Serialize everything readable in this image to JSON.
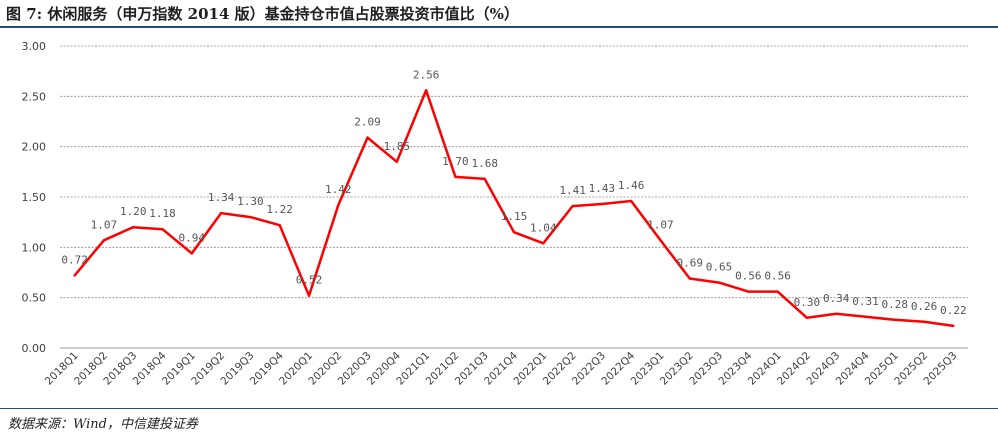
{
  "title": "图 7: 休闲服务（申万指数 2014 版）基金持仓市值占股票投资市值比（%）",
  "source": "数据来源：Wind，中信建投证券",
  "chart_data": {
    "type": "line",
    "title": "图 7: 休闲服务（申万指数 2014 版）基金持仓市值占股票投资市值比（%）",
    "xlabel": "",
    "ylabel": "",
    "ylim": [
      0,
      3
    ],
    "yticks": [
      "0.00",
      "0.50",
      "1.00",
      "1.50",
      "2.00",
      "2.50",
      "3.00"
    ],
    "grid": true,
    "line_color": "#ff0000",
    "categories": [
      "2018Q1",
      "2018Q2",
      "2018Q3",
      "2018Q4",
      "2019Q1",
      "2019Q2",
      "2019Q3",
      "2019Q4",
      "2020Q1",
      "2020Q2",
      "2020Q3",
      "2020Q4",
      "2021Q1",
      "2021Q2",
      "2021Q3",
      "2021Q4",
      "2022Q1",
      "2022Q2",
      "2022Q3",
      "2022Q4",
      "2023Q1",
      "2023Q2",
      "2023Q3",
      "2023Q4",
      "2024Q1",
      "2024Q2",
      "2024Q3",
      "2024Q4",
      "2025Q1",
      "2025Q2",
      "2025Q3"
    ],
    "values": [
      0.72,
      1.07,
      1.2,
      1.18,
      0.94,
      1.34,
      1.3,
      1.22,
      0.52,
      1.42,
      2.09,
      1.85,
      2.56,
      1.7,
      1.68,
      1.15,
      1.04,
      1.41,
      1.43,
      1.46,
      1.07,
      0.69,
      0.65,
      0.56,
      0.56,
      0.3,
      0.34,
      0.31,
      0.28,
      0.26,
      0.22
    ],
    "labels": [
      "0.72",
      "1.07",
      "1.20",
      "1.18",
      "0.94",
      "1.34",
      "1.30",
      "1.22",
      "0.52",
      "1.42",
      "2.09",
      "1.85",
      "2.56",
      "1.70",
      "1.68",
      "1.15",
      "1.04",
      "1.41",
      "1.43",
      "1.46",
      "1.07",
      "0.69",
      "0.65",
      "0.56",
      "0.56",
      "0.30",
      "0.34",
      "0.31",
      "0.28",
      "0.26",
      "0.22"
    ]
  }
}
